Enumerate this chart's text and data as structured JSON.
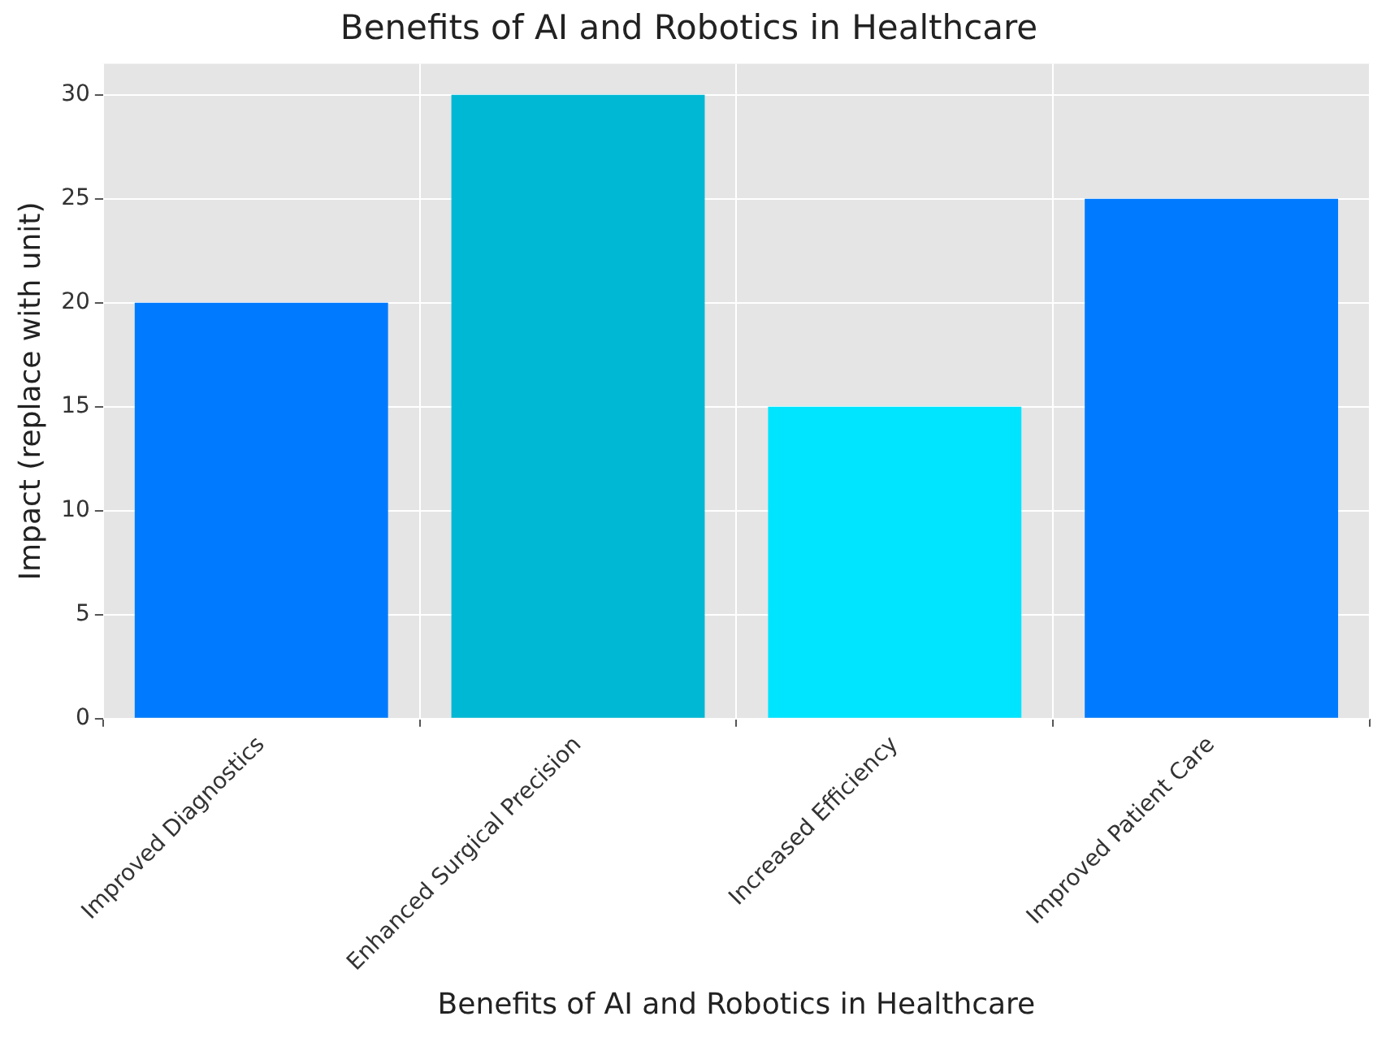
{
  "chart_data": {
    "type": "bar",
    "title": "Benefits of AI and Robotics in Healthcare",
    "xlabel": "Benefits of AI and Robotics in Healthcare",
    "ylabel": "Impact (replace with unit)",
    "categories": [
      "Improved Diagnostics",
      "Enhanced Surgical Precision",
      "Increased Efficiency",
      "Improved Patient Care"
    ],
    "values": [
      20,
      30,
      15,
      25
    ],
    "colors": [
      "#007bff",
      "#00b8d4",
      "#00e5ff",
      "#007bff"
    ],
    "ylim": [
      0,
      31.5
    ],
    "yticks": [
      0,
      5,
      10,
      15,
      20,
      25,
      30
    ],
    "grid": true
  }
}
